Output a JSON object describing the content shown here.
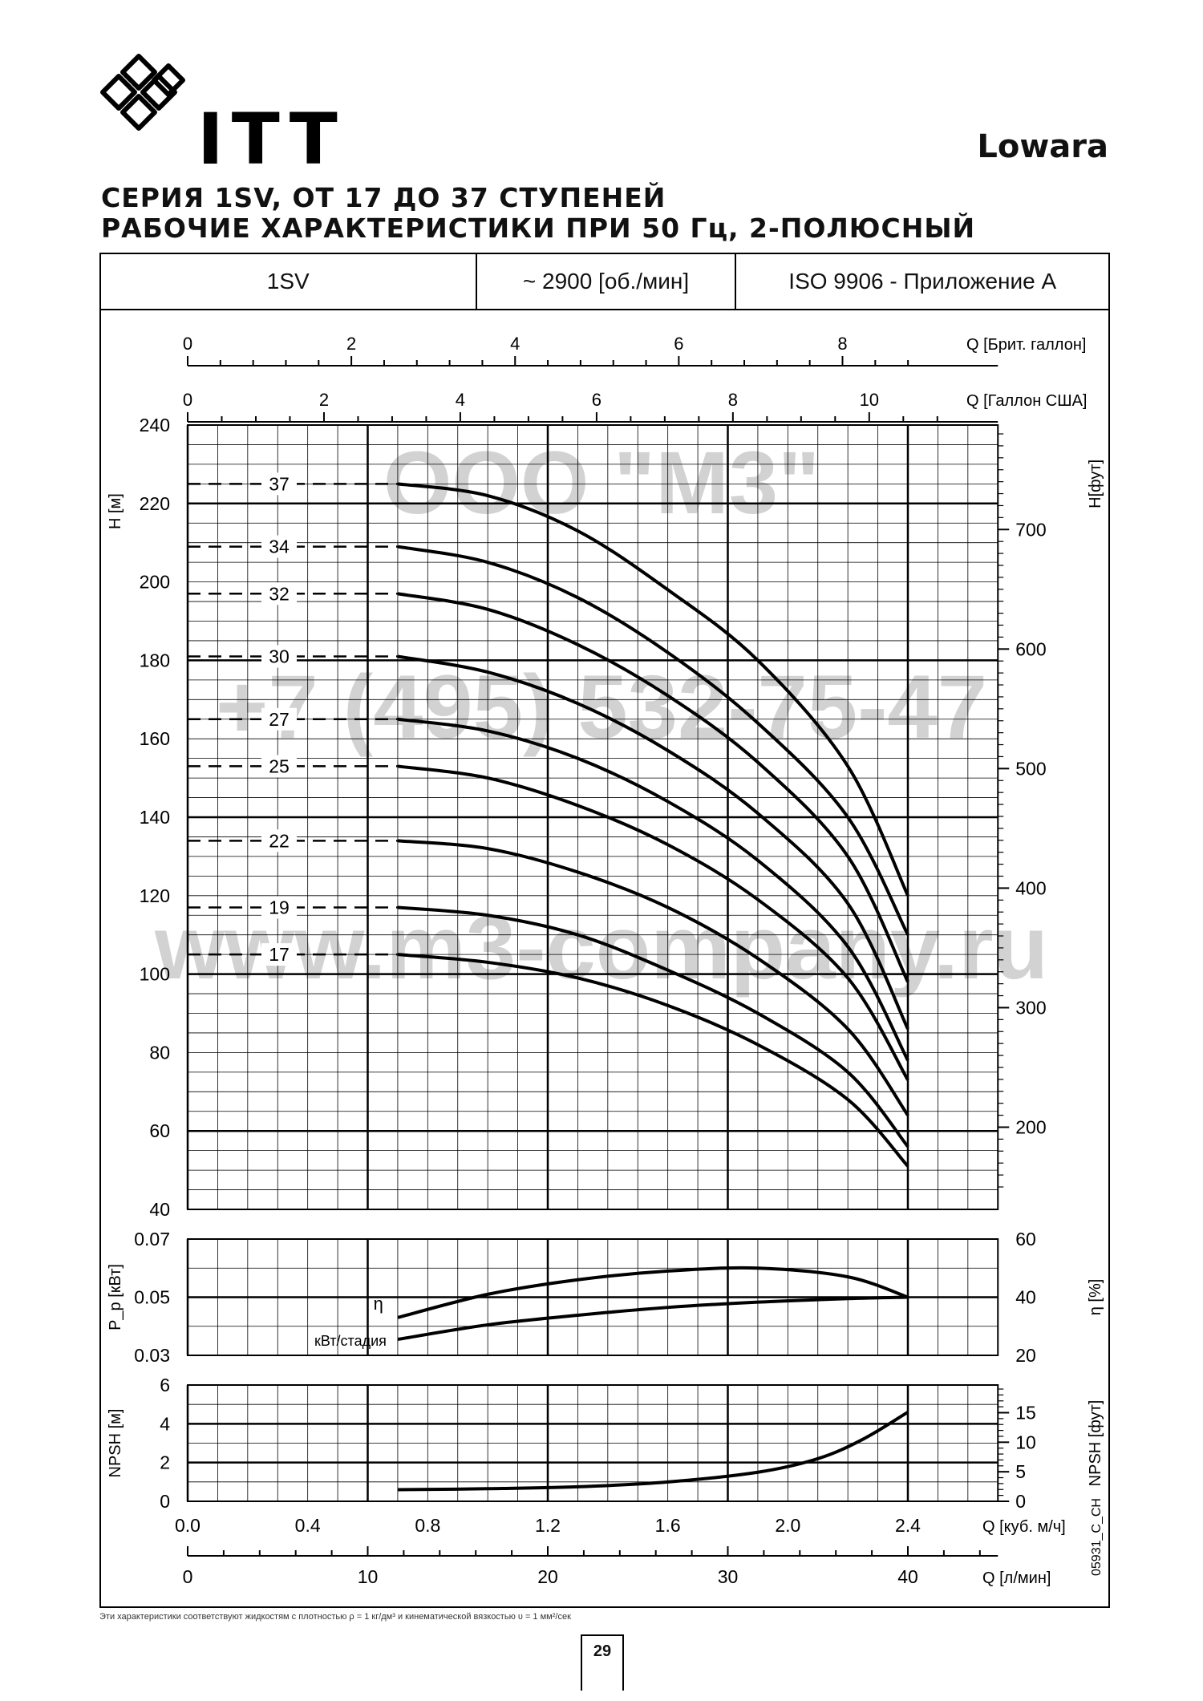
{
  "header": {
    "company": "ITT",
    "brand": "Lowara",
    "title_line1": "СЕРИЯ 1SV, ОТ 17 ДО 37 СТУПЕНЕЙ",
    "title_line2": "РАБОЧИЕ ХАРАКТЕРИСТИКИ ПРИ 50 Гц, 2-ПОЛЮСНЫЙ"
  },
  "info_row": {
    "model": "1SV",
    "speed": "~ 2900 [об./мин]",
    "standard": "ISO 9906 - Приложение A"
  },
  "watermarks": [
    "ООО \"М3\"",
    "+7 (495) 532-75-47",
    "www.m3-company.ru"
  ],
  "footnote": "Эти характеристики соответствуют жидкостям с плотностью ρ = 1 кг/дм³ и кинематической вязкостью υ = 1 мм²/сек",
  "page_number": "29",
  "code": "05931_C_CH",
  "colors": {
    "line": "#000000",
    "grid": "#000000",
    "watermark": "#c8c8c8"
  },
  "chart_data": {
    "type": "line",
    "x_axes": [
      {
        "label": "Q [Брит. галлон]",
        "ticks": [
          "0",
          "2",
          "4",
          "6",
          "8"
        ],
        "values": [
          0,
          2,
          4,
          6,
          8
        ],
        "max_unit_ratio": 0.06
      },
      {
        "label": "Q [Галлон США]",
        "ticks": [
          "0",
          "2",
          "4",
          "6",
          "8",
          "10"
        ],
        "values": [
          0,
          2,
          4,
          6,
          8,
          10
        ]
      },
      {
        "label": "Q [куб. м/ч]",
        "ticks": [
          "0.0",
          "0.4",
          "0.8",
          "1.2",
          "1.6",
          "2.0",
          "2.4"
        ],
        "values": [
          0,
          0.4,
          0.8,
          1.2,
          1.6,
          2.0,
          2.4
        ]
      },
      {
        "label": "Q [л/мин]",
        "ticks": [
          "0",
          "10",
          "20",
          "30",
          "40"
        ],
        "values": [
          0,
          10,
          20,
          30,
          40
        ]
      }
    ],
    "head": {
      "ylabel_left": "H [м]",
      "ylabel_right": "H[фут]",
      "ylim": [
        40,
        240
      ],
      "yticks_left": [
        "40",
        "60",
        "80",
        "100",
        "120",
        "140",
        "160",
        "180",
        "200",
        "220",
        "240"
      ],
      "yticks_right": [
        "200",
        "300",
        "400",
        "500",
        "600",
        "700"
      ],
      "series": [
        {
          "name": "37",
          "x": [
            0.7,
            1.0,
            1.3,
            1.6,
            1.9,
            2.2,
            2.4
          ],
          "y": [
            225,
            222,
            213,
            198,
            180,
            153,
            120
          ]
        },
        {
          "name": "34",
          "x": [
            0.7,
            1.0,
            1.3,
            1.6,
            1.9,
            2.2,
            2.4
          ],
          "y": [
            209,
            205,
            196,
            182,
            164,
            140,
            110
          ]
        },
        {
          "name": "32",
          "x": [
            0.7,
            1.0,
            1.3,
            1.6,
            1.9,
            2.2,
            2.4
          ],
          "y": [
            197,
            193,
            184,
            171,
            154,
            130,
            98
          ]
        },
        {
          "name": "30",
          "x": [
            0.7,
            1.0,
            1.3,
            1.6,
            1.9,
            2.2,
            2.4
          ],
          "y": [
            181,
            177,
            169,
            157,
            141,
            118,
            86
          ]
        },
        {
          "name": "27",
          "x": [
            0.7,
            1.0,
            1.3,
            1.6,
            1.9,
            2.2,
            2.4
          ],
          "y": [
            165,
            162,
            155,
            144,
            129,
            107,
            78
          ]
        },
        {
          "name": "25",
          "x": [
            0.7,
            1.0,
            1.3,
            1.6,
            1.9,
            2.2,
            2.4
          ],
          "y": [
            153,
            150,
            143,
            133,
            119,
            99,
            73
          ]
        },
        {
          "name": "22",
          "x": [
            0.7,
            1.0,
            1.3,
            1.6,
            1.9,
            2.2,
            2.4
          ],
          "y": [
            134,
            132,
            126,
            117,
            104,
            86,
            64
          ]
        },
        {
          "name": "19",
          "x": [
            0.7,
            1.0,
            1.3,
            1.6,
            1.9,
            2.2,
            2.4
          ],
          "y": [
            117,
            115,
            110,
            101,
            90,
            75,
            56
          ]
        },
        {
          "name": "17",
          "x": [
            0.7,
            1.0,
            1.3,
            1.6,
            1.9,
            2.2,
            2.4
          ],
          "y": [
            105,
            103,
            99,
            92,
            82,
            68,
            51
          ]
        }
      ]
    },
    "power_efficiency": {
      "ylabel_left": "P_p [кВт]",
      "ylabel_right": "η [%]",
      "ylim_left": [
        0.03,
        0.07
      ],
      "ylim_right": [
        20,
        60
      ],
      "yticks_left": [
        "0.03",
        "0.05",
        "0.07"
      ],
      "yticks_right": [
        "20",
        "40",
        "60"
      ],
      "series": [
        {
          "name": "η",
          "axis": "right",
          "x": [
            0.7,
            1.0,
            1.3,
            1.6,
            1.9,
            2.2,
            2.4
          ],
          "y": [
            33,
            41,
            46,
            49,
            50,
            47,
            40
          ]
        },
        {
          "name": "кВт/стадия",
          "axis": "left",
          "x": [
            0.7,
            1.0,
            1.3,
            1.6,
            1.9,
            2.2,
            2.4
          ],
          "y": [
            0.0355,
            0.0405,
            0.0438,
            0.0465,
            0.0483,
            0.0495,
            0.05
          ]
        }
      ]
    },
    "npsh": {
      "ylabel_left": "NPSH [м]",
      "ylabel_right": "NPSH [фут]",
      "ylim": [
        0,
        6
      ],
      "yticks_left": [
        "0",
        "2",
        "4",
        "6"
      ],
      "yticks_right": [
        "0",
        "5",
        "10",
        "15"
      ],
      "series": [
        {
          "name": "NPSH",
          "x": [
            0.7,
            1.0,
            1.3,
            1.6,
            1.9,
            2.1,
            2.25,
            2.4
          ],
          "y": [
            0.6,
            0.65,
            0.75,
            1.0,
            1.5,
            2.2,
            3.2,
            4.6
          ]
        }
      ]
    }
  }
}
